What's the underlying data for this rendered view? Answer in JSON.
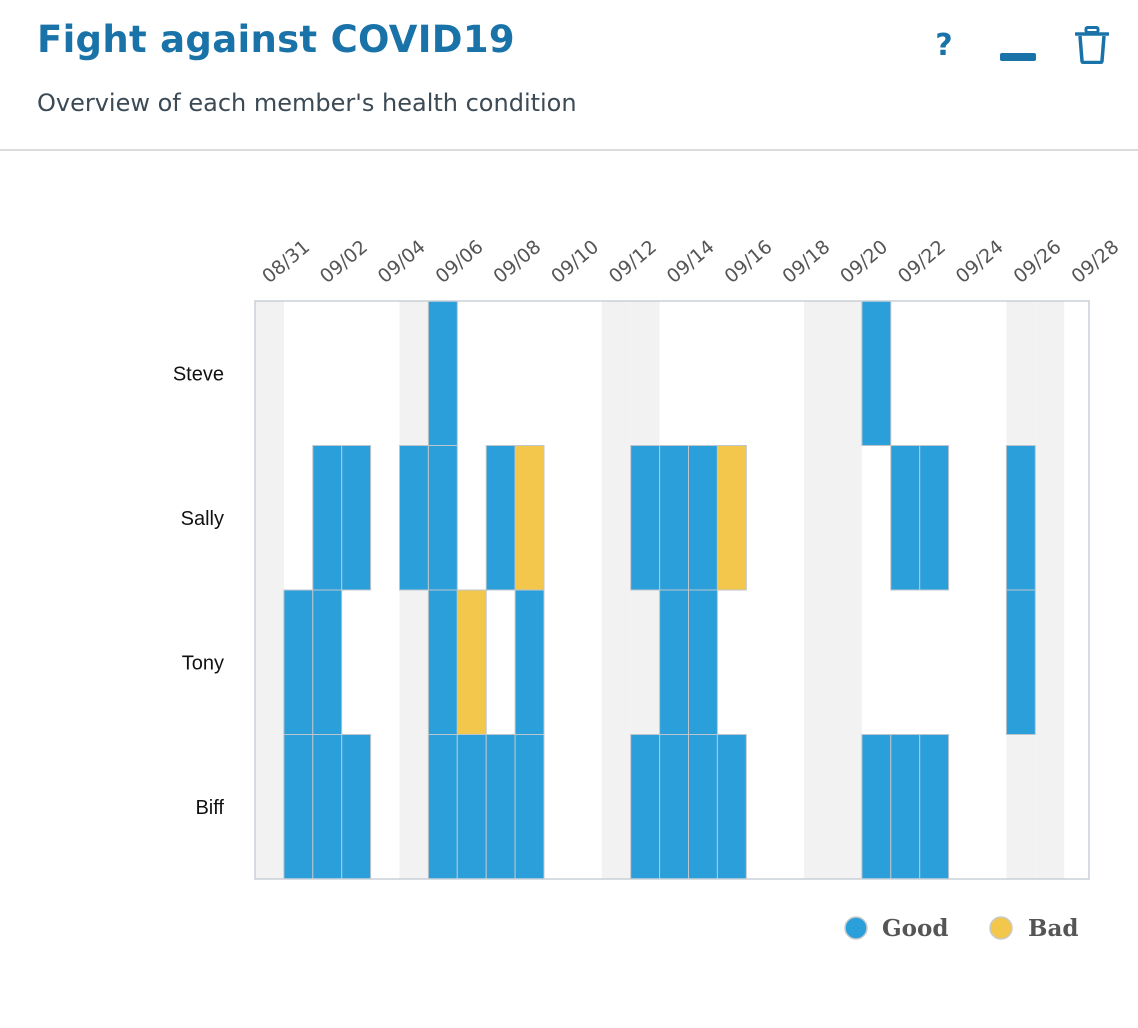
{
  "header": {
    "title": "Fight against COVID19",
    "subtitle": "Overview of each member's health condition",
    "help_label": "?",
    "minimize_icon": "minimize-icon",
    "delete_icon": "trash-icon"
  },
  "chart_data": {
    "type": "heatmap",
    "xlabel": "",
    "ylabel": "",
    "x_start": "08/31",
    "days": [
      "08/31",
      "09/01",
      "09/02",
      "09/03",
      "09/04",
      "09/05",
      "09/06",
      "09/07",
      "09/08",
      "09/09",
      "09/10",
      "09/11",
      "09/12",
      "09/13",
      "09/14",
      "09/15",
      "09/16",
      "09/17",
      "09/18",
      "09/19",
      "09/20",
      "09/21",
      "09/22",
      "09/23",
      "09/24",
      "09/25",
      "09/26",
      "09/27",
      "09/28"
    ],
    "tick_labels": [
      "08/31",
      "09/02",
      "09/04",
      "09/06",
      "09/08",
      "09/10",
      "09/12",
      "09/14",
      "09/16",
      "09/18",
      "09/20",
      "09/22",
      "09/24",
      "09/26",
      "09/28"
    ],
    "members": [
      "Steve",
      "Sally",
      "Tony",
      "Biff"
    ],
    "weekend_days": [
      "08/31",
      "09/05",
      "09/06",
      "09/12",
      "09/13",
      "09/19",
      "09/20",
      "09/26",
      "09/27"
    ],
    "status_colors": {
      "Good": "#2b9fda",
      "Bad": "#f2c74c"
    },
    "weekend_color": "#f2f2f2",
    "legend": {
      "items": [
        "Good",
        "Bad"
      ],
      "position": "bottom-right"
    },
    "records": {
      "Steve": {
        "09/06": "Good",
        "09/21": "Good"
      },
      "Sally": {
        "09/02": "Good",
        "09/03": "Good",
        "09/05": "Good",
        "09/06": "Good",
        "09/08": "Good",
        "09/09": "Bad",
        "09/13": "Good",
        "09/14": "Good",
        "09/15": "Good",
        "09/16": "Bad",
        "09/22": "Good",
        "09/23": "Good",
        "09/26": "Good"
      },
      "Tony": {
        "09/01": "Good",
        "09/02": "Good",
        "09/06": "Good",
        "09/07": "Bad",
        "09/09": "Good",
        "09/14": "Good",
        "09/15": "Good",
        "09/26": "Good"
      },
      "Biff": {
        "09/01": "Good",
        "09/02": "Good",
        "09/03": "Good",
        "09/06": "Good",
        "09/07": "Good",
        "09/08": "Good",
        "09/09": "Good",
        "09/13": "Good",
        "09/14": "Good",
        "09/15": "Good",
        "09/16": "Good",
        "09/21": "Good",
        "09/22": "Good",
        "09/23": "Good"
      }
    }
  }
}
